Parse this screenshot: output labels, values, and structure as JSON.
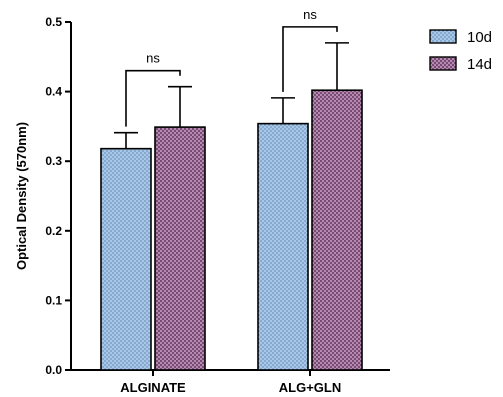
{
  "chart_data": {
    "type": "bar",
    "title": "",
    "xlabel": "",
    "ylabel": "Optical Density (570nm)",
    "ylim": [
      0,
      0.5
    ],
    "yticks": [
      "0.0",
      "0.1",
      "0.2",
      "0.3",
      "0.4",
      "0.5"
    ],
    "categories": [
      "ALGINATE",
      "ALG+GLN"
    ],
    "series": [
      {
        "name": "10d",
        "values": [
          0.318,
          0.354
        ],
        "errors": [
          0.023,
          0.037
        ],
        "color": "#a9c7e8",
        "pattern": "dots"
      },
      {
        "name": "14d",
        "values": [
          0.349,
          0.402
        ],
        "errors": [
          0.058,
          0.068
        ],
        "color": "#9a6a94",
        "pattern": "checker"
      }
    ],
    "annotations": [
      {
        "category": "ALGINATE",
        "text": "ns"
      },
      {
        "category": "ALG+GLN",
        "text": "ns"
      }
    ],
    "legend_position": "top-right",
    "grid": false
  }
}
